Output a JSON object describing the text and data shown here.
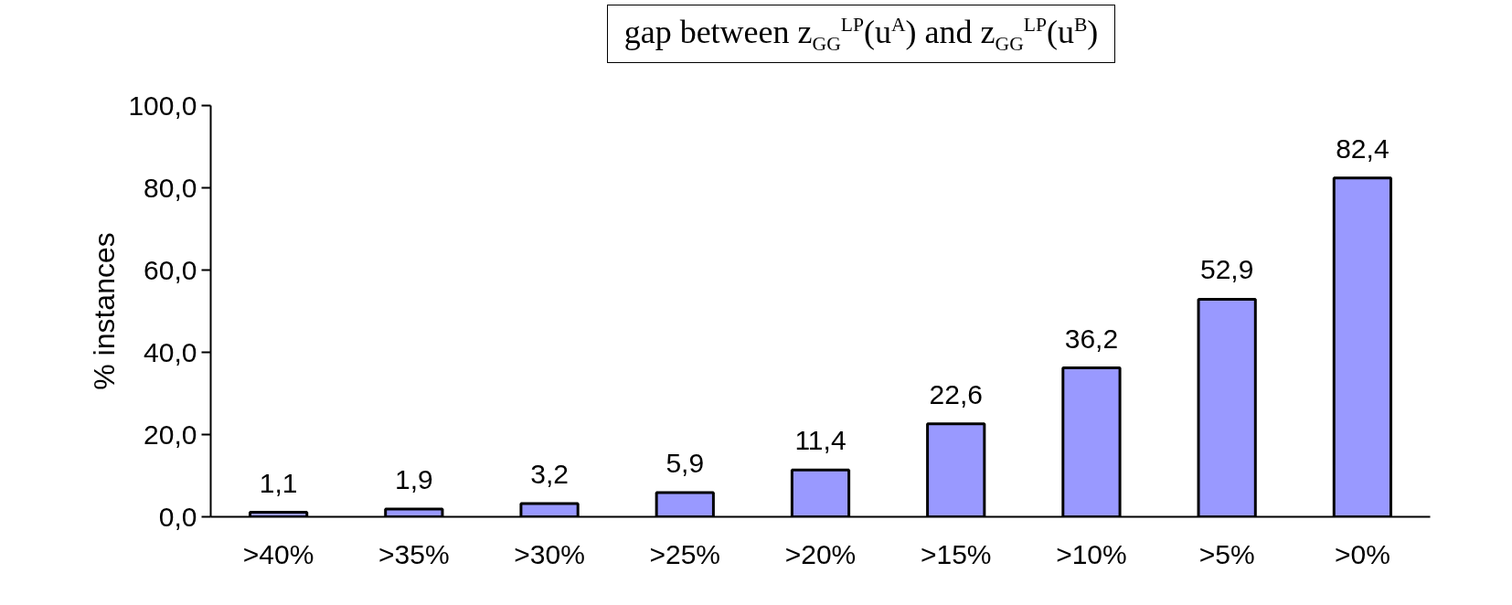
{
  "chart_data": {
    "type": "bar",
    "title": "gap between z$_{GG}$$^{LP}$(u$^{A}$) and z$_{GG}$$^{LP}$(u$^{B}$)",
    "ylabel": "% instances",
    "categories": [
      ">40%",
      ">35%",
      ">30%",
      ">25%",
      ">20%",
      ">15%",
      ">10%",
      ">5%",
      ">0%"
    ],
    "values": [
      1.1,
      1.9,
      3.2,
      5.9,
      11.4,
      22.6,
      36.2,
      52.9,
      82.4
    ],
    "value_labels": [
      "1,1",
      "1,9",
      "3,2",
      "5,9",
      "11,4",
      "22,6",
      "36,2",
      "52,9",
      "82,4"
    ],
    "color": "#9999ff",
    "ylim": [
      0,
      100
    ],
    "yticks": [
      {
        "value": 0,
        "label": "0,0"
      },
      {
        "value": 20,
        "label": "20,0"
      },
      {
        "value": 40,
        "label": "40,0"
      },
      {
        "value": 60,
        "label": "60,0"
      },
      {
        "value": 80,
        "label": "80,0"
      },
      {
        "value": 100,
        "label": "100,0"
      }
    ],
    "grid": false
  }
}
